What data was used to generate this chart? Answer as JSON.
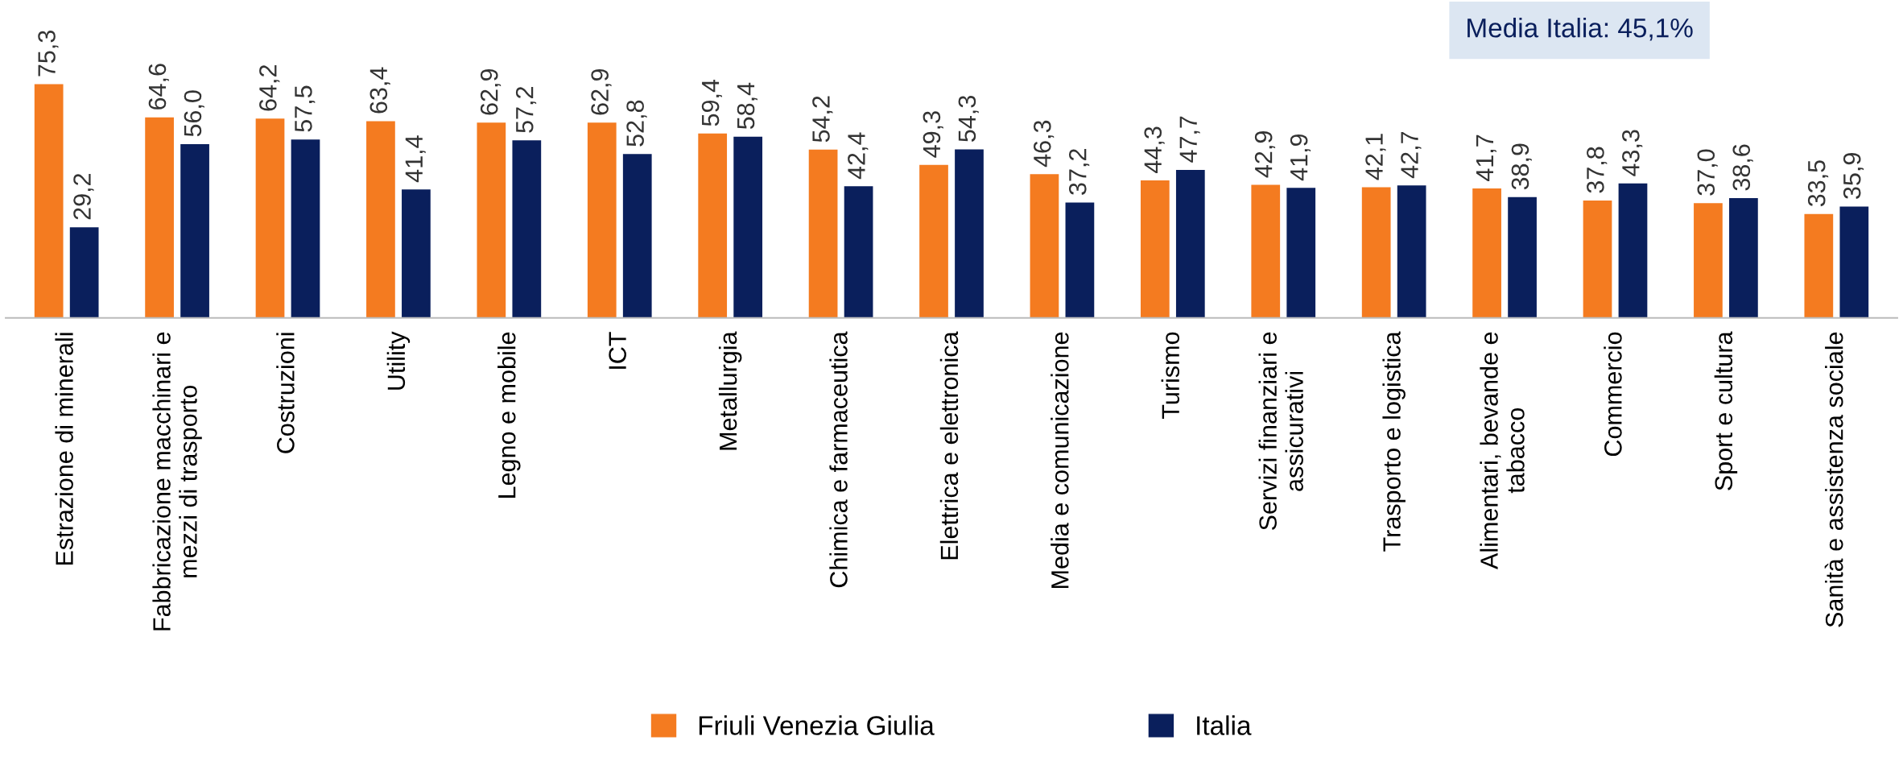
{
  "chart_data": {
    "type": "bar",
    "categories": [
      "Estrazione di minerali",
      "Fabbricazione macchinari e\nmezzi di trasporto",
      "Costruzioni",
      "Utility",
      "Legno e mobile",
      "ICT",
      "Metallurgia",
      "Chimica e farmaceutica",
      "Elettrica e elettronica",
      "Media e comunicazione",
      "Turismo",
      "Servizi finanziari e\nassicurativi",
      "Trasporto e logistica",
      "Alimentari, bevande e\ntabacco",
      "Commercio",
      "Sport e cultura",
      "Sanità e assistenza sociale"
    ],
    "series": [
      {
        "name": "Friuli Venezia Giulia",
        "color": "#f47b20",
        "values": [
          75.3,
          64.6,
          64.2,
          63.4,
          62.9,
          62.9,
          59.4,
          54.2,
          49.3,
          46.3,
          44.3,
          42.9,
          42.1,
          41.7,
          37.8,
          37.0,
          33.5
        ],
        "value_labels": [
          "75,3",
          "64,6",
          "64,2",
          "63,4",
          "62,9",
          "62,9",
          "59,4",
          "54,2",
          "49,3",
          "46,3",
          "44,3",
          "42,9",
          "42,1",
          "41,7",
          "37,8",
          "37,0",
          "33,5"
        ]
      },
      {
        "name": "Italia",
        "color": "#0a1f5c",
        "values": [
          29.2,
          56.0,
          57.5,
          41.4,
          57.2,
          52.8,
          58.4,
          42.4,
          54.3,
          37.2,
          47.7,
          41.9,
          42.7,
          38.9,
          43.3,
          38.6,
          35.9
        ],
        "value_labels": [
          "29,2",
          "56,0",
          "57,5",
          "41,4",
          "57,2",
          "52,8",
          "58,4",
          "42,4",
          "54,3",
          "37,2",
          "47,7",
          "41,9",
          "42,7",
          "38,9",
          "43,3",
          "38,6",
          "35,9"
        ]
      }
    ],
    "annotations": [
      "Media Italia: 45,1%"
    ],
    "legend": "bottom",
    "grid": false
  }
}
